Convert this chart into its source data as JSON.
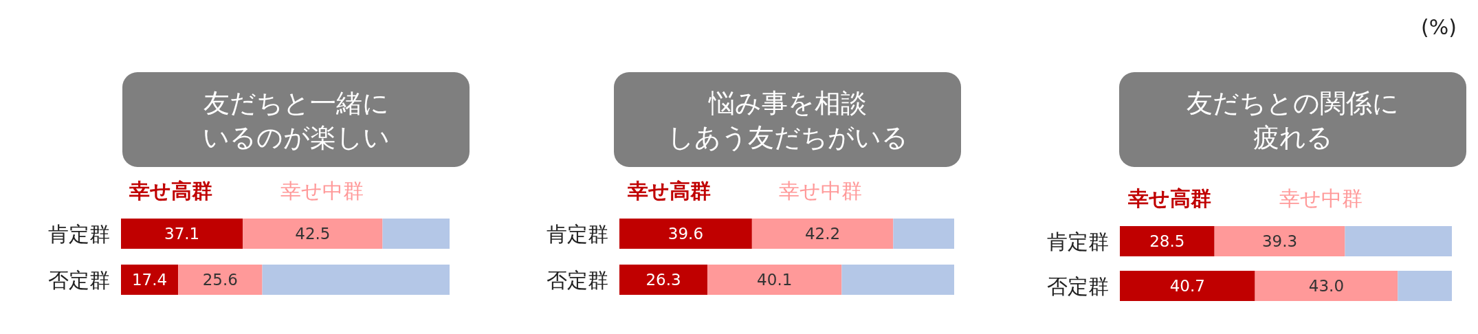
{
  "chart_data": [
    {
      "type": "bar",
      "orientation": "horizontal",
      "stacked": true,
      "title": "友だちと一緒にいるのが楽しい",
      "categories": [
        "肯定群",
        "否定群"
      ],
      "xlim": [
        0,
        100
      ],
      "legend": "top",
      "series": [
        {
          "name": "幸せ高群",
          "color": "#c00000",
          "values": [
            37.1,
            17.4
          ],
          "value_labels": [
            "37.1",
            "17.4"
          ]
        },
        {
          "name": "幸せ中群",
          "color": "#ff9999",
          "values": [
            42.5,
            25.6
          ],
          "value_labels": [
            "42.5",
            "25.6"
          ]
        },
        {
          "color": "#b4c7e7",
          "values": [
            20.4,
            57.0
          ],
          "value_labels": [
            null,
            null
          ]
        }
      ]
    },
    {
      "type": "bar",
      "orientation": "horizontal",
      "stacked": true,
      "title": "悩み事を相談しあう友だちがいる",
      "categories": [
        "肯定群",
        "否定群"
      ],
      "xlim": [
        0,
        100
      ],
      "legend": "top",
      "series": [
        {
          "name": "幸せ高群",
          "color": "#c00000",
          "values": [
            39.6,
            26.3
          ],
          "value_labels": [
            "39.6",
            "26.3"
          ]
        },
        {
          "name": "幸せ中群",
          "color": "#ff9999",
          "values": [
            42.2,
            40.1
          ],
          "value_labels": [
            "42.2",
            "40.1"
          ]
        },
        {
          "color": "#b4c7e7",
          "values": [
            18.2,
            33.6
          ],
          "value_labels": [
            null,
            null
          ]
        }
      ]
    },
    {
      "type": "bar",
      "orientation": "horizontal",
      "stacked": true,
      "title": "友だちとの関係に疲れる",
      "categories": [
        "肯定群",
        "否定群"
      ],
      "xlim": [
        0,
        100
      ],
      "legend": "top",
      "annotations": [
        "(%)"
      ],
      "series": [
        {
          "name": "幸せ高群",
          "color": "#c00000",
          "values": [
            28.5,
            40.7
          ],
          "value_labels": [
            "28.5",
            "40.7"
          ]
        },
        {
          "name": "幸せ中群",
          "color": "#ff9999",
          "values": [
            39.3,
            43.0
          ],
          "value_labels": [
            "39.3",
            "43.0"
          ]
        },
        {
          "color": "#b4c7e7",
          "values": [
            32.2,
            16.3
          ],
          "value_labels": [
            null,
            null
          ]
        }
      ]
    }
  ]
}
